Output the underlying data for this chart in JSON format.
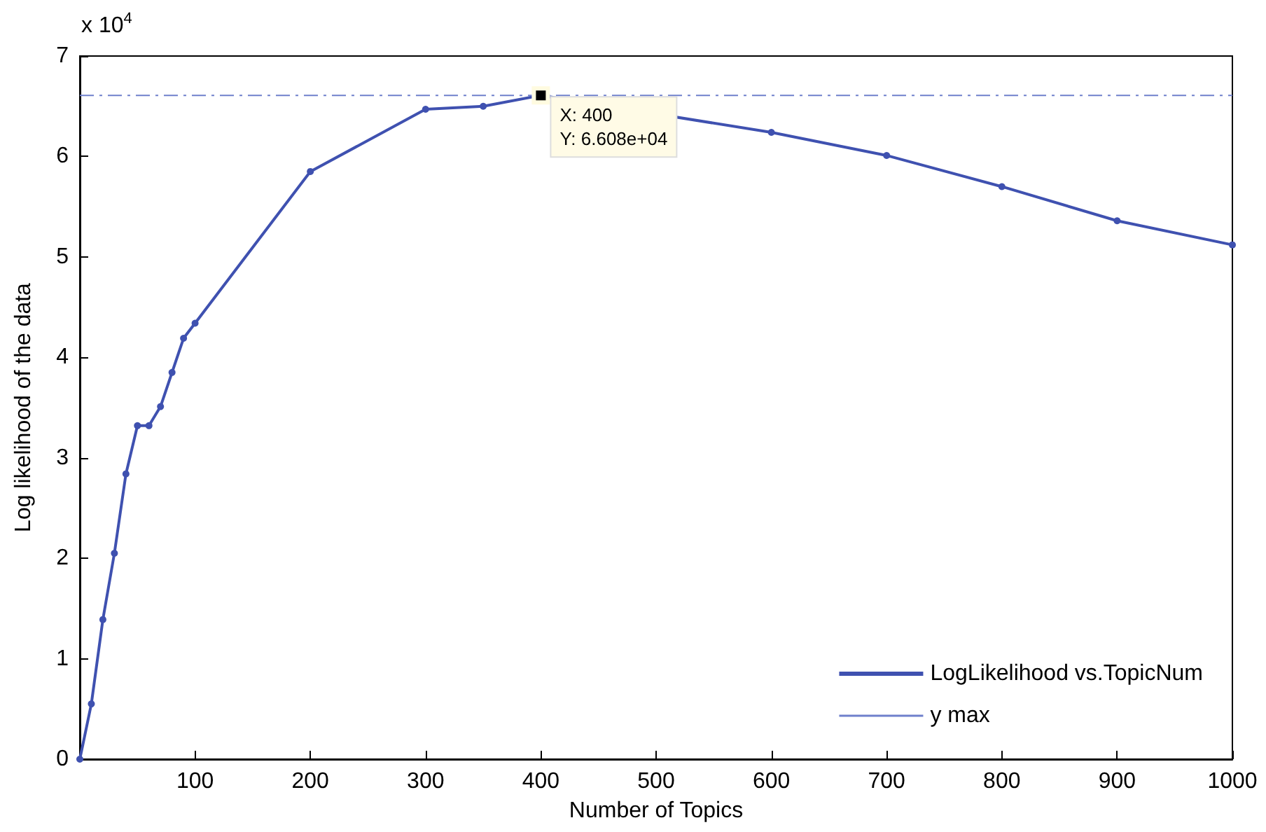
{
  "chart_data": {
    "type": "line",
    "xlabel": "Number of Topics",
    "ylabel": "Log likelihood of the data",
    "x": [
      0,
      10,
      20,
      30,
      40,
      50,
      60,
      70,
      80,
      90,
      100,
      200,
      300,
      350,
      400,
      500,
      600,
      700,
      800,
      900,
      1000
    ],
    "series": [
      {
        "name": "LogLikelihood vs.TopicNum",
        "color": "#3f51b0",
        "values": [
          0,
          0.55,
          1.39,
          2.05,
          2.84,
          3.32,
          3.32,
          3.51,
          3.85,
          4.19,
          4.34,
          5.85,
          6.47,
          6.5,
          6.608,
          null,
          6.24,
          6.01,
          5.7,
          5.36,
          5.12
        ]
      }
    ],
    "xlim": [
      0,
      1000
    ],
    "xticks": [
      100,
      200,
      300,
      400,
      500,
      600,
      700,
      800,
      900,
      1000
    ],
    "ylim": [
      0,
      7
    ],
    "yticks": [
      0,
      1,
      2,
      3,
      4,
      5,
      6,
      7
    ],
    "ref_lines": [
      {
        "axis": "y",
        "value": 6.608,
        "label": "y max",
        "color": "#6f80cc",
        "line_style": "dashdot"
      }
    ],
    "annotations": [
      "x 10$^{4}$",
      {
        "text": "X: 400\nY: 6.608e+04",
        "x": 400,
        "y": 6.608
      }
    ],
    "marker": "circle",
    "line_style": "solid",
    "grid": false,
    "legend": "bottom right"
  }
}
